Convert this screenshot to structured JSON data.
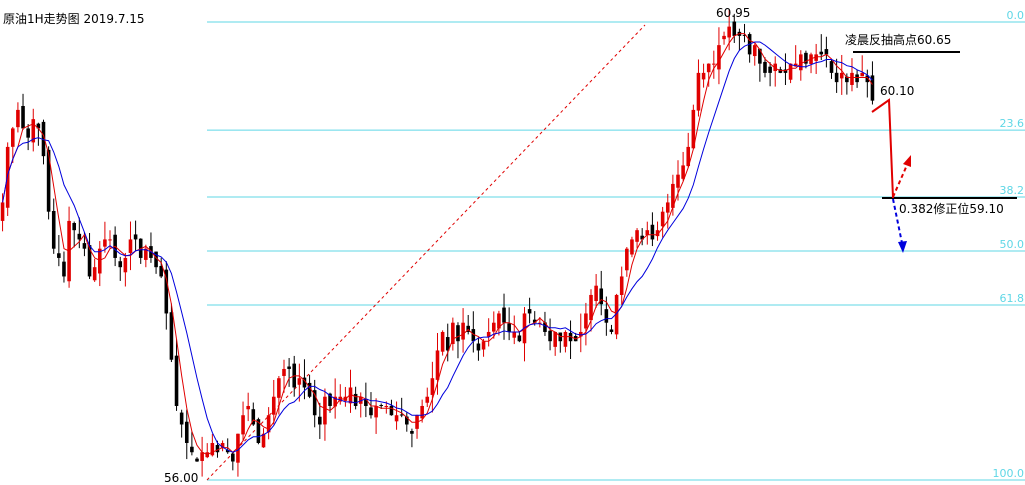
{
  "title": "原油1H走势图 2019.7.15",
  "chart_data": {
    "type": "candlestick",
    "instrument": "原油",
    "timeframe": "1H",
    "date": "2019.7.15",
    "price_range": [
      55.78,
      61.03
    ],
    "swing_low": 56.0,
    "swing_high": 60.95,
    "fibonacci_levels": [
      {
        "label": "0.0",
        "ratio": 0.0
      },
      {
        "label": "23.6",
        "ratio": 0.236
      },
      {
        "label": "38.2",
        "ratio": 0.382
      },
      {
        "label": "50.0",
        "ratio": 0.5
      },
      {
        "label": "61.8",
        "ratio": 0.618
      },
      {
        "label": "100.0",
        "ratio": 1.0
      }
    ],
    "annotations": {
      "low_label": "56.00",
      "high_label": "60.95",
      "resistance_label": "凌晨反抽高点60.65",
      "resistance_price": 60.65,
      "current_label": "60.10",
      "current_price": 60.1,
      "support_label": "0.382修正位59.10",
      "support_price": 59.1
    },
    "series": [
      {
        "type": "ohlc",
        "close": [
          59.0,
          59.6,
          59.8,
          60.0,
          59.8,
          59.7,
          59.9,
          59.8,
          59.5,
          58.9,
          58.5,
          58.4,
          58.2,
          58.8,
          58.7,
          58.6,
          58.5,
          58.2,
          58.3,
          58.5,
          58.6,
          58.6,
          58.4,
          58.3,
          58.4,
          58.6,
          58.6,
          58.4,
          58.5,
          58.4,
          58.3,
          58.2,
          57.8,
          57.3,
          56.8,
          56.6,
          56.4,
          56.3,
          56.2,
          56.3,
          56.3,
          56.4,
          56.3,
          56.4,
          56.3,
          56.2,
          56.5,
          56.7,
          56.8,
          56.6,
          56.4,
          56.5,
          56.7,
          56.9,
          57.1,
          57.2,
          57.2,
          57.0,
          57.1,
          57.0,
          56.9,
          56.7,
          56.6,
          56.9,
          56.8,
          56.9,
          56.9,
          56.9,
          57.0,
          56.8,
          56.9,
          56.8,
          56.7,
          56.8,
          56.8,
          56.8,
          56.7,
          56.7,
          56.7,
          56.6,
          56.5,
          56.7,
          56.8,
          56.9,
          57.1,
          57.4,
          57.6,
          57.4,
          57.7,
          57.5,
          57.7,
          57.6,
          57.5,
          57.4,
          57.5,
          57.6,
          57.7,
          57.8,
          57.7,
          57.6,
          57.6,
          57.5,
          57.8,
          57.8,
          57.7,
          57.7,
          57.6,
          57.5,
          57.6,
          57.5,
          57.6,
          57.5,
          57.5,
          57.6,
          57.8,
          58.0,
          58.1,
          57.9,
          57.7,
          57.6,
          58.0,
          58.2,
          58.5,
          58.6,
          58.7,
          58.6,
          58.7,
          58.6,
          58.7,
          58.9,
          59.0,
          59.2,
          59.3,
          59.4,
          59.6,
          60.0,
          60.4,
          60.4,
          60.5,
          60.5,
          60.7,
          60.8,
          60.9,
          60.8,
          60.8,
          60.8,
          60.6,
          60.7,
          60.5,
          60.4,
          60.4,
          60.5,
          60.4,
          60.4,
          60.5,
          60.5,
          60.6,
          60.5,
          60.6,
          60.6,
          60.6,
          60.6,
          60.4,
          60.3,
          60.4,
          60.3,
          60.4,
          60.3,
          60.4,
          60.3,
          60.1
        ]
      },
      {
        "type": "ma_fast",
        "color": "#e00000"
      },
      {
        "type": "ma_slow",
        "color": "#0000dd"
      }
    ],
    "projection": {
      "target_support": 59.1,
      "up_arrow_color": "#e00000",
      "down_arrow_color": "#0000dd"
    },
    "grid": false
  }
}
